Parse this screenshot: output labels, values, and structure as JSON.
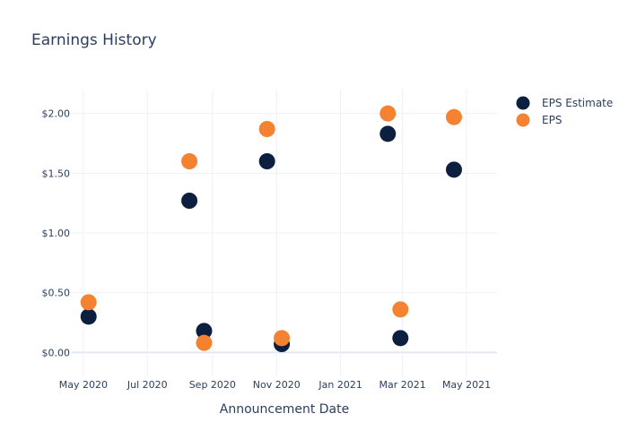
{
  "chart_data": {
    "type": "scatter",
    "title": "Earnings History",
    "xlabel": "Announcement Date",
    "ylabel": "",
    "x_ticks": [
      "May 2020",
      "Jul 2020",
      "Sep 2020",
      "Nov 2020",
      "Jan 2021",
      "Mar 2021",
      "May 2021"
    ],
    "y_ticks": [
      "$0.00",
      "$0.50",
      "$1.00",
      "$1.50",
      "$2.00"
    ],
    "x_range": [
      "2020-04-20",
      "2021-05-30"
    ],
    "ylim": [
      -0.2,
      2.2
    ],
    "legend_position": "top-right",
    "grid": true,
    "series": [
      {
        "name": "EPS Estimate",
        "color": "#0c1f3f",
        "points": [
          {
            "date": "2020-05-06",
            "value": 0.3
          },
          {
            "date": "2020-08-10",
            "value": 1.27
          },
          {
            "date": "2020-08-24",
            "value": 0.18
          },
          {
            "date": "2020-10-23",
            "value": 1.6
          },
          {
            "date": "2020-11-06",
            "value": 0.07
          },
          {
            "date": "2021-02-15",
            "value": 1.83
          },
          {
            "date": "2021-02-27",
            "value": 0.12
          },
          {
            "date": "2021-04-19",
            "value": 1.53
          }
        ]
      },
      {
        "name": "EPS",
        "color": "#f58230",
        "points": [
          {
            "date": "2020-05-06",
            "value": 0.42
          },
          {
            "date": "2020-08-10",
            "value": 1.6
          },
          {
            "date": "2020-08-24",
            "value": 0.08
          },
          {
            "date": "2020-10-23",
            "value": 1.87
          },
          {
            "date": "2020-11-06",
            "value": 0.12
          },
          {
            "date": "2021-02-15",
            "value": 2.0
          },
          {
            "date": "2021-02-27",
            "value": 0.36
          },
          {
            "date": "2021-04-19",
            "value": 1.97
          }
        ]
      }
    ]
  }
}
